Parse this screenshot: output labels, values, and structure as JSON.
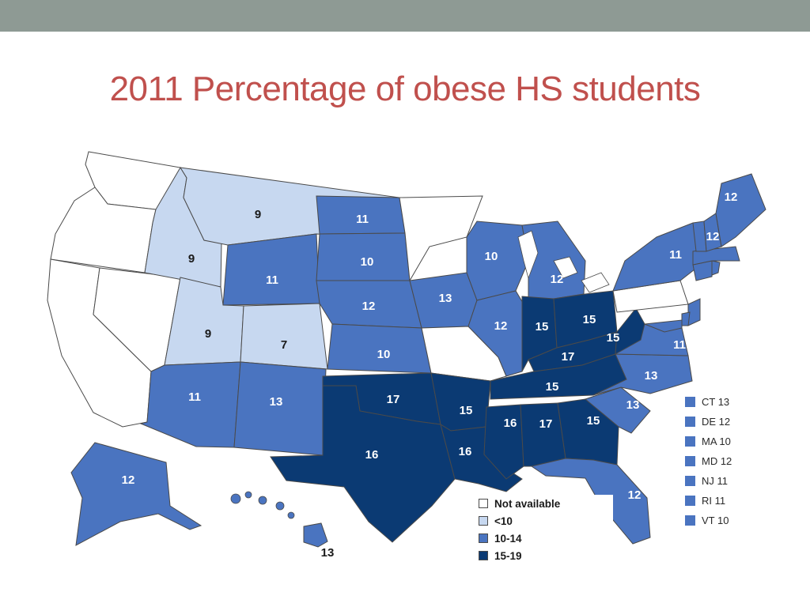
{
  "slide": {
    "title": "2011 Percentage of obese HS students",
    "bar_color": "#8e9a94",
    "title_color": "#c0504d"
  },
  "map": {
    "colors": {
      "na": "#ffffff",
      "lt10": "#c7d8f0",
      "mid": "#4a74c0",
      "high": "#0b3a73",
      "border": "#4a4a4a"
    },
    "labels": {
      "MT": "9",
      "ID": "9",
      "UT": "9",
      "CO": "7",
      "ND": "11",
      "SD": "10",
      "NE": "12",
      "KS": "10",
      "WY": "11",
      "AZ": "11",
      "NM": "13",
      "OK": "17",
      "TX": "16",
      "AR": "15",
      "LA": "16",
      "MS": "16",
      "AL": "17",
      "GA": "15",
      "TN": "15",
      "KY": "17",
      "IN": "15",
      "OH": "15",
      "WV": "15",
      "IA": "13",
      "WI": "10",
      "IL": "12",
      "MI": "12",
      "VA": "11",
      "NC": "13",
      "SC": "13",
      "FL": "12",
      "NY": "11",
      "ME": "12",
      "NH": "12",
      "AK": "12",
      "HI": "13"
    },
    "legend": [
      {
        "label": "Not available",
        "color": "#ffffff"
      },
      {
        "label": "<10",
        "color": "#c7d8f0"
      },
      {
        "label": "10-14",
        "color": "#4a74c0"
      },
      {
        "label": "15-19",
        "color": "#0b3a73"
      }
    ],
    "small_states": [
      {
        "label": "CT 13"
      },
      {
        "label": "DE 12"
      },
      {
        "label": "MA 10"
      },
      {
        "label": "MD 12"
      },
      {
        "label": "NJ 11"
      },
      {
        "label": "RI 11"
      },
      {
        "label": "VT 10"
      }
    ]
  }
}
